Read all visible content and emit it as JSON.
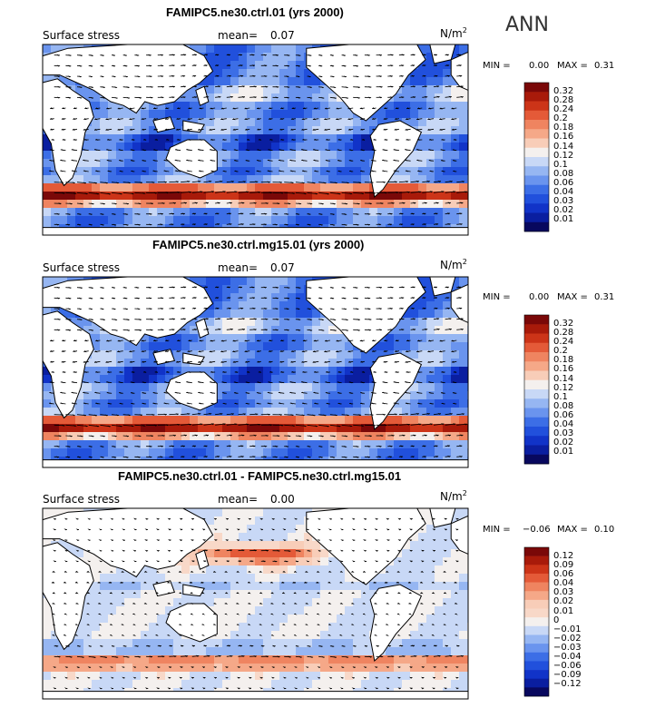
{
  "season": "ANN",
  "units": "N/m",
  "units_sup": "2",
  "var_label": "Surface stress",
  "mean_label": "mean=",
  "min_label": "MIN =",
  "max_label": "MAX =",
  "colors": {
    "abs_scale": [
      "#08085e",
      "#0a1ea0",
      "#1133c8",
      "#2150dc",
      "#3c6ee6",
      "#6a94ee",
      "#96b6f2",
      "#c8d8f6",
      "#f4f0ee",
      "#f8cdb8",
      "#f5a888",
      "#ef8460",
      "#e45a38",
      "#cc3418",
      "#a81a0a",
      "#7a0808"
    ],
    "diff_scale": [
      "#08085e",
      "#0a1ea0",
      "#1133c8",
      "#2150dc",
      "#3c6ee6",
      "#6a94ee",
      "#96b6f2",
      "#c8d8f6",
      "#f4f0ee",
      "#f8d8c8",
      "#f8cdb8",
      "#f5a888",
      "#ef8460",
      "#e45a38",
      "#cc3418",
      "#a81a0a",
      "#7a0808"
    ]
  },
  "chart_data": [
    {
      "type": "heatmap",
      "title": "FAMIPC5.ne30.ctrl.01 (yrs 2000)",
      "variable": "Surface stress",
      "mean": "0.07",
      "min": "0.00",
      "max": "0.31",
      "units": "N/m2",
      "colorbar_levels": [
        "0.32",
        "0.28",
        "0.24",
        "0.2",
        "0.18",
        "0.16",
        "0.14",
        "0.12",
        "0.1",
        "0.08",
        "0.06",
        "0.04",
        "0.03",
        "0.02",
        "0.01"
      ],
      "overlay": "wind stress vectors"
    },
    {
      "type": "heatmap",
      "title": "FAMIPC5.ne30.ctrl.mg15.01 (yrs 2000)",
      "variable": "Surface stress",
      "mean": "0.07",
      "min": "0.00",
      "max": "0.31",
      "units": "N/m2",
      "colorbar_levels": [
        "0.32",
        "0.28",
        "0.24",
        "0.2",
        "0.18",
        "0.16",
        "0.14",
        "0.12",
        "0.1",
        "0.08",
        "0.06",
        "0.04",
        "0.03",
        "0.02",
        "0.01"
      ],
      "overlay": "wind stress vectors"
    },
    {
      "type": "heatmap",
      "title": "FAMIPC5.ne30.ctrl.01 - FAMIPC5.ne30.ctrl.mg15.01",
      "variable": "Surface stress",
      "mean": "0.00",
      "min": "−0.06",
      "max": "0.10",
      "units": "N/m2",
      "colorbar_levels": [
        "0.12",
        "0.09",
        "0.06",
        "0.04",
        "0.03",
        "0.02",
        "0.01",
        "0",
        "−0.01",
        "−0.02",
        "−0.03",
        "−0.04",
        "−0.06",
        "−0.09",
        "−0.12"
      ],
      "overlay": "wind stress difference vectors"
    }
  ]
}
